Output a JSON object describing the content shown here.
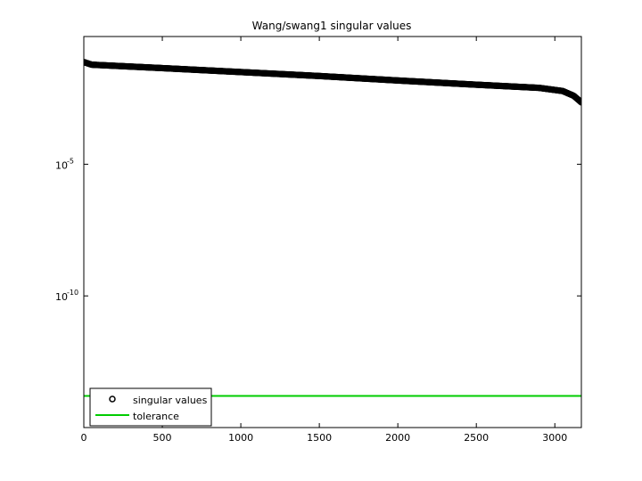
{
  "chart_data": {
    "type": "scatter",
    "title": "Wang/swang1 singular values",
    "xlabel": "",
    "ylabel": "",
    "xlim": [
      0,
      3169
    ],
    "ylim_log10": [
      -15,
      -0.15
    ],
    "yscale": "log",
    "grid": false,
    "legend_position": "bottom-left",
    "x_ticks": [
      0,
      500,
      1000,
      1500,
      2000,
      2500,
      3000
    ],
    "x_tick_labels": [
      "0",
      "500",
      "1000",
      "1500",
      "2000",
      "2500",
      "3000"
    ],
    "y_ticks_log10": [
      -5,
      -10
    ],
    "y_tick_labels": [
      {
        "base": "10",
        "exp": "-5"
      },
      {
        "base": "10",
        "exp": "-10"
      }
    ],
    "series": [
      {
        "name": "singular values",
        "marker": "circle",
        "color": "#000000",
        "n": 3169,
        "curve_log10": [
          {
            "x": 0,
            "y": -1.12
          },
          {
            "x": 50,
            "y": -1.22
          },
          {
            "x": 500,
            "y": -1.35
          },
          {
            "x": 1000,
            "y": -1.5
          },
          {
            "x": 1500,
            "y": -1.65
          },
          {
            "x": 2000,
            "y": -1.82
          },
          {
            "x": 2500,
            "y": -1.98
          },
          {
            "x": 2900,
            "y": -2.1
          },
          {
            "x": 3050,
            "y": -2.22
          },
          {
            "x": 3120,
            "y": -2.4
          },
          {
            "x": 3169,
            "y": -2.65
          }
        ]
      },
      {
        "name": "tolerance",
        "line": true,
        "color": "#00cc00",
        "y_log10": -13.8
      }
    ]
  }
}
